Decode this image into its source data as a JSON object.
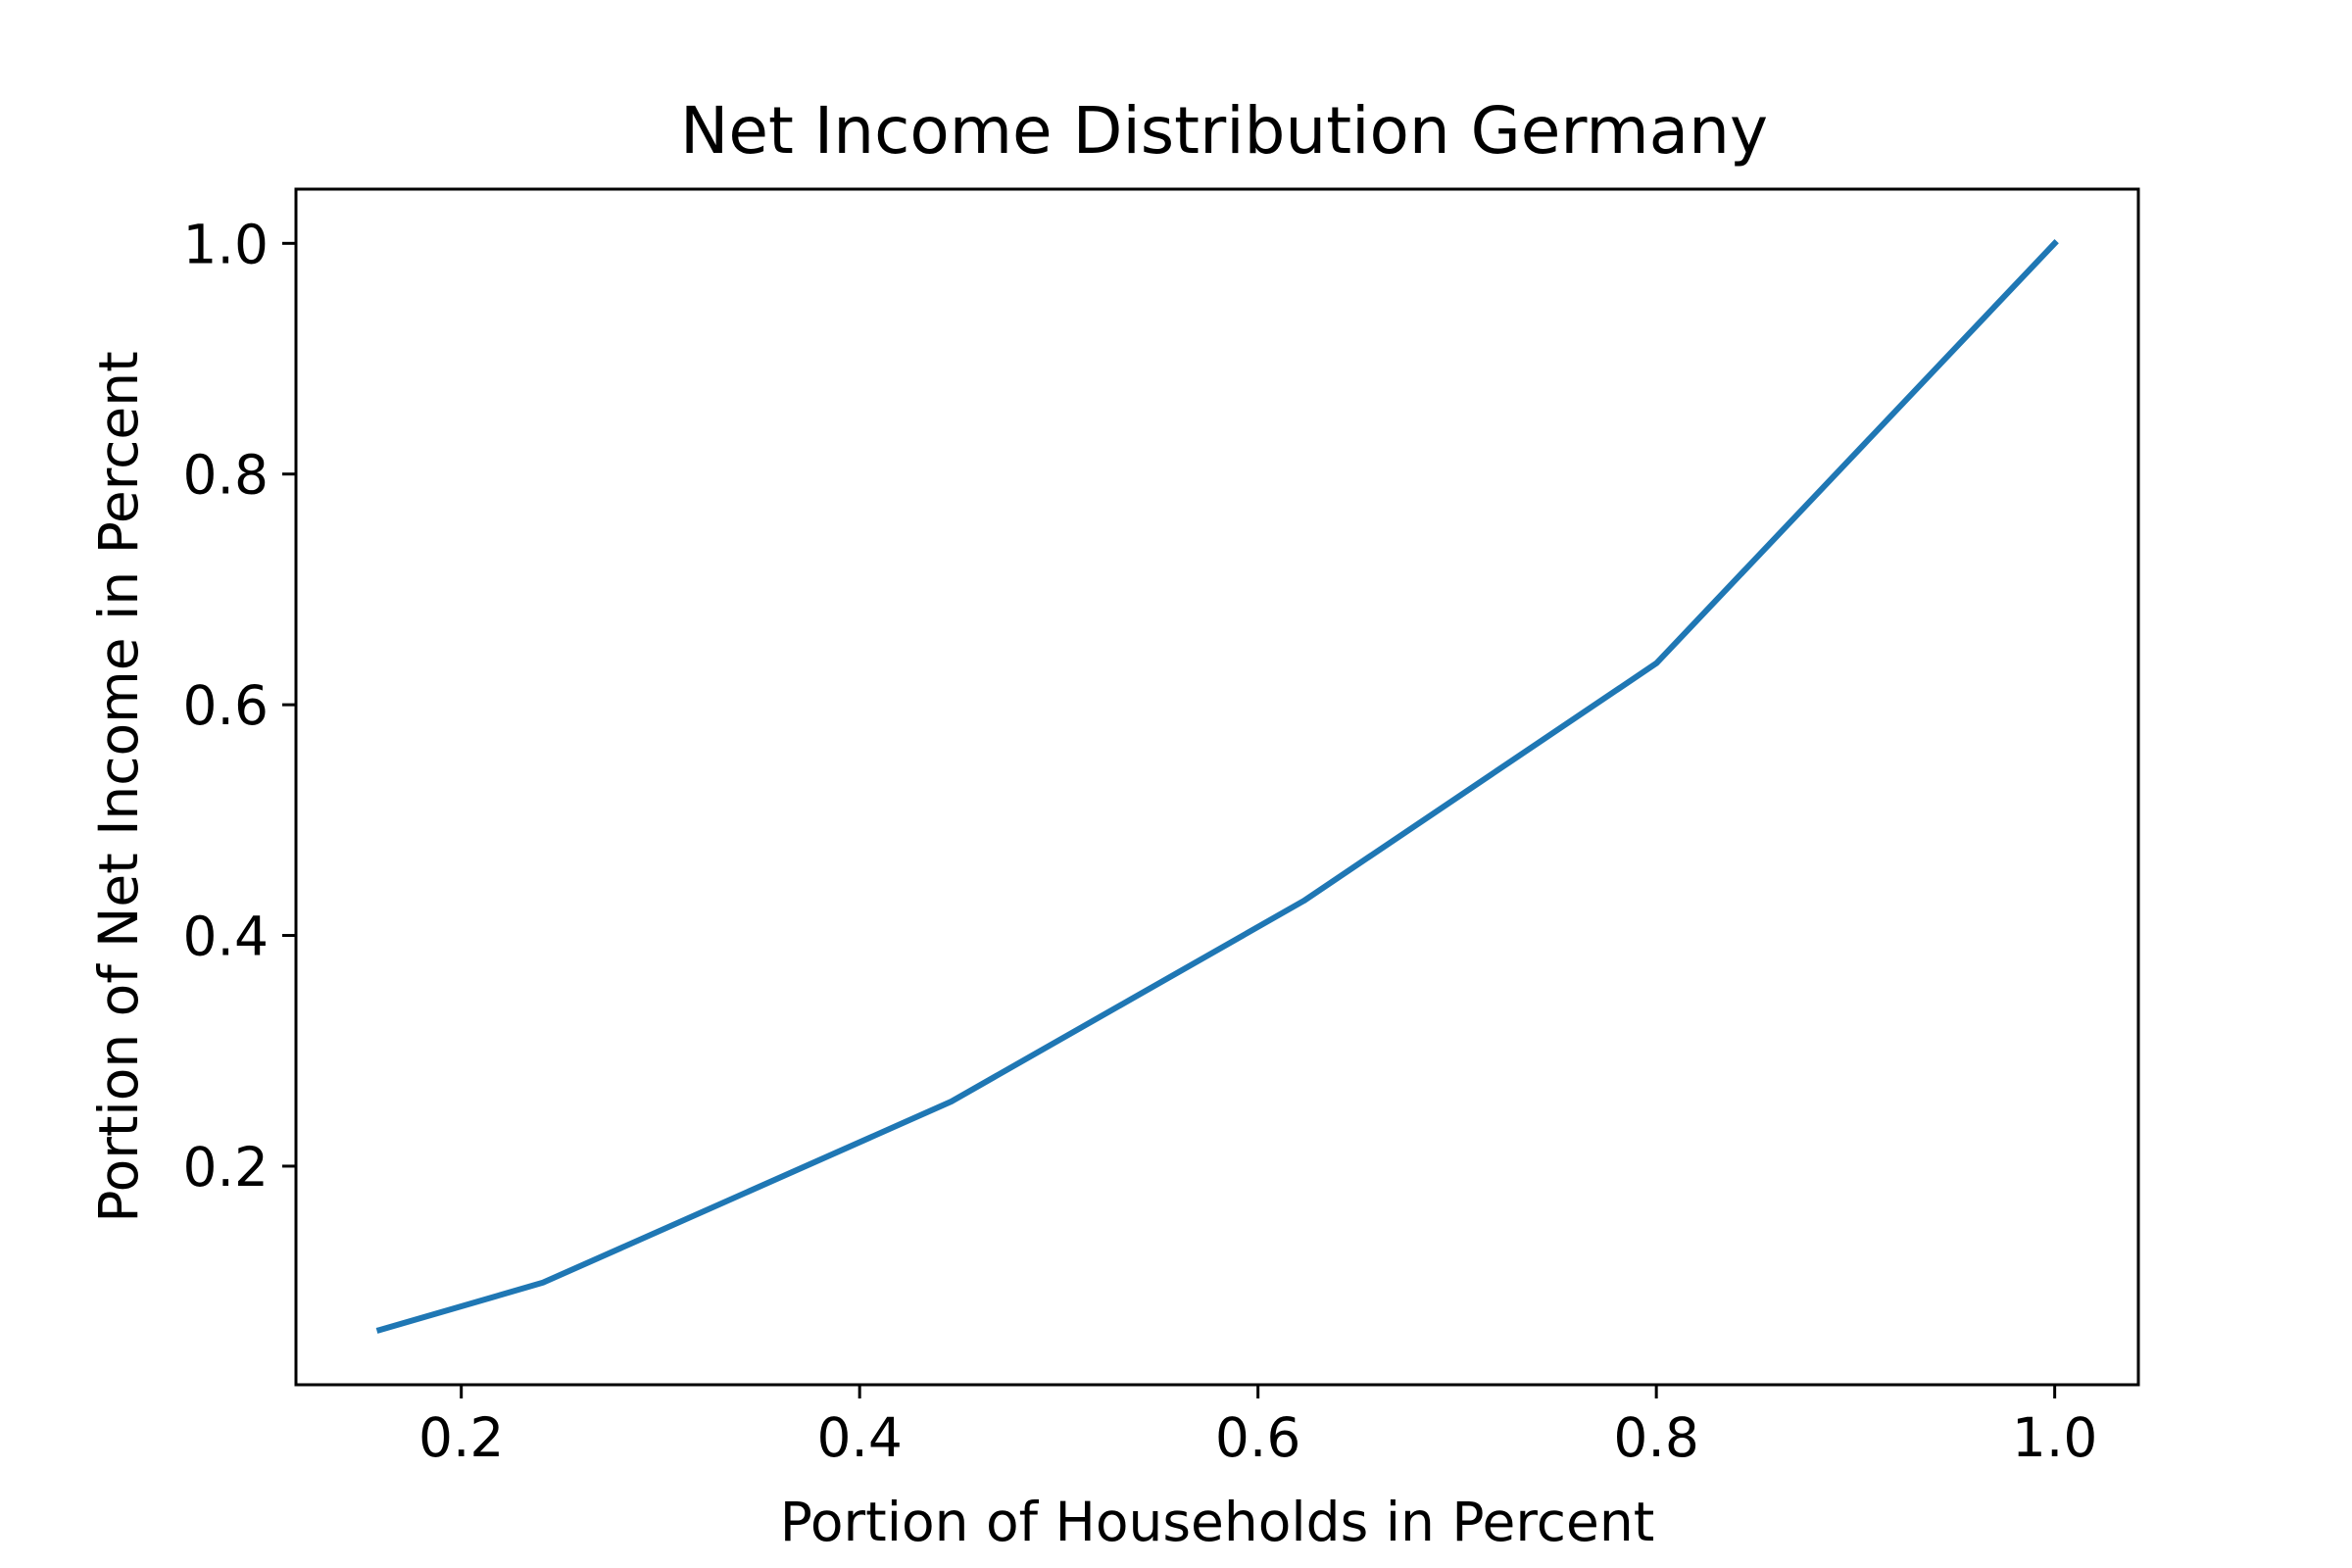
{
  "chart_data": {
    "type": "line",
    "title": "Net Income Distribution Germany",
    "xlabel": "Portion of Households in Percent",
    "ylabel": "Portion of Net Income in Percent",
    "xlim": [
      0.117,
      1.042
    ],
    "ylim": [
      0.0105,
      1.047
    ],
    "xticks": [
      0.2,
      0.4,
      0.6,
      0.8,
      1.0
    ],
    "xtick_labels": [
      "0.2",
      "0.4",
      "0.6",
      "0.8",
      "1.0"
    ],
    "yticks": [
      0.2,
      0.4,
      0.6,
      0.8,
      1.0
    ],
    "ytick_labels": [
      "0.2",
      "0.4",
      "0.6",
      "0.8",
      "1.0"
    ],
    "grid": false,
    "series": [
      {
        "color": "#1f77b4",
        "x": [
          0.159,
          0.241,
          0.446,
          0.623,
          0.8,
          1.0
        ],
        "y": [
          0.058,
          0.099,
          0.256,
          0.43,
          0.636,
          1.0
        ]
      }
    ]
  }
}
